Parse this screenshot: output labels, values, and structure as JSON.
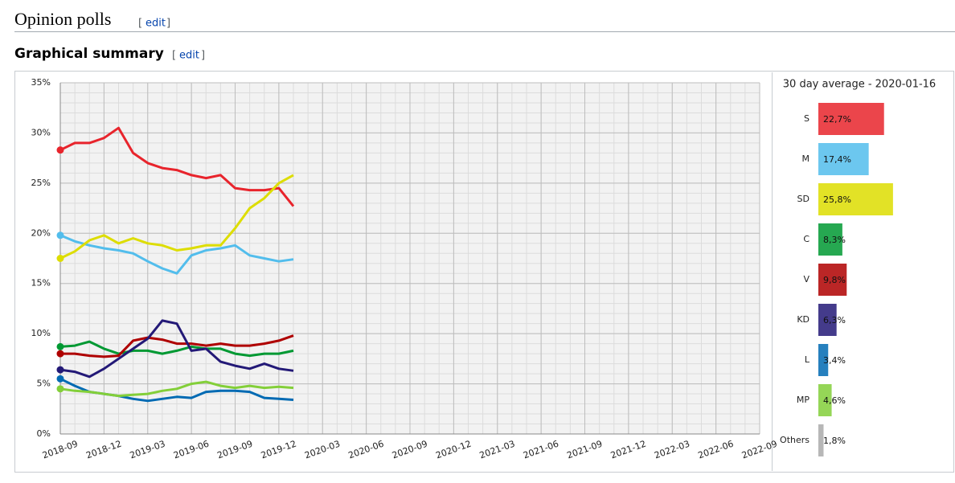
{
  "heading": {
    "title": "Opinion polls",
    "edit": {
      "open": "[",
      "link": "edit",
      "close": "]"
    }
  },
  "subheading": {
    "title": "Graphical summary",
    "edit": {
      "open": "[",
      "link": "edit",
      "close": "]"
    }
  },
  "chart_data": [
    {
      "type": "line",
      "x": [
        "2018-09",
        "2018-10",
        "2018-11",
        "2018-12",
        "2019-01",
        "2019-02",
        "2019-03",
        "2019-04",
        "2019-05",
        "2019-06",
        "2019-07",
        "2019-08",
        "2019-09",
        "2019-10",
        "2019-11",
        "2019-12",
        "2020-01"
      ],
      "series": [
        {
          "color": "#e8242c",
          "values": [
            28.3,
            29,
            29,
            29.5,
            30.5,
            28,
            27,
            26.5,
            26.3,
            25.8,
            25.5,
            25.8,
            24.5,
            24.3,
            24.3,
            24.5,
            22.7
          ]
        },
        {
          "color": "#52bdec",
          "values": [
            19.8,
            19.2,
            18.8,
            18.5,
            18.3,
            18,
            17.2,
            16.5,
            16,
            17.8,
            18.3,
            18.5,
            18.8,
            17.8,
            17.5,
            17.2,
            17.4
          ]
        },
        {
          "color": "#dddd00",
          "values": [
            17.5,
            18.2,
            19.3,
            19.8,
            19,
            19.5,
            19,
            18.8,
            18.3,
            18.5,
            18.8,
            18.8,
            20.5,
            22.5,
            23.5,
            25,
            25.8
          ]
        },
        {
          "color": "#009933",
          "values": [
            8.7,
            8.8,
            9.2,
            8.5,
            8,
            8.3,
            8.3,
            8,
            8.3,
            8.7,
            8.5,
            8.5,
            8,
            7.8,
            8,
            8,
            8.3
          ]
        },
        {
          "color": "#af0000",
          "values": [
            8,
            8,
            7.8,
            7.7,
            7.8,
            9.3,
            9.6,
            9.4,
            9,
            9,
            8.8,
            9,
            8.8,
            8.8,
            9,
            9.3,
            9.8
          ]
        },
        {
          "color": "#231977",
          "values": [
            6.4,
            6.2,
            5.7,
            6.5,
            7.5,
            8.5,
            9.5,
            11.3,
            11,
            8.3,
            8.5,
            7.2,
            6.8,
            6.5,
            7,
            6.5,
            6.3
          ]
        },
        {
          "color": "#006ab3",
          "values": [
            5.5,
            4.8,
            4.2,
            4,
            3.8,
            3.5,
            3.3,
            3.5,
            3.7,
            3.6,
            4.2,
            4.3,
            4.3,
            4.2,
            3.6,
            3.5,
            3.4
          ]
        },
        {
          "color": "#83cf39",
          "values": [
            4.5,
            4.3,
            4.2,
            4,
            3.8,
            3.9,
            4,
            4.3,
            4.5,
            5,
            5.2,
            4.8,
            4.6,
            4.8,
            4.6,
            4.7,
            4.6
          ]
        }
      ],
      "xlim": [
        "2018-09",
        "2022-09"
      ],
      "xticks": [
        "2018-09",
        "2018-12",
        "2019-03",
        "2019-06",
        "2019-09",
        "2019-12",
        "2020-03",
        "2020-06",
        "2020-09",
        "2020-12",
        "2021-03",
        "2021-06",
        "2021-09",
        "2021-12",
        "2022-03",
        "2022-06",
        "2022-09"
      ],
      "ylim": [
        0,
        35
      ],
      "yticks": [
        {
          "value": 0,
          "label": "0%"
        },
        {
          "value": 5,
          "label": "5%"
        },
        {
          "value": 10,
          "label": "10%"
        },
        {
          "value": 15,
          "label": "15%"
        },
        {
          "value": 20,
          "label": "20%"
        },
        {
          "value": 25,
          "label": "25%"
        },
        {
          "value": 30,
          "label": "30%"
        },
        {
          "value": 35,
          "label": "35%"
        }
      ],
      "grid": true
    },
    {
      "type": "bar",
      "orientation": "horizontal",
      "title": "30 day average - 2020-01-16",
      "categories": [
        "S",
        "M",
        "SD",
        "C",
        "V",
        "KD",
        "L",
        "MP",
        "Others"
      ],
      "values": [
        22.7,
        17.4,
        25.8,
        8.3,
        9.8,
        6.3,
        3.4,
        4.6,
        1.8
      ],
      "value_labels": [
        "22,7%",
        "17,4%",
        "25,8%",
        "8,3%",
        "9,8%",
        "6,3%",
        "3,4%",
        "4,6%",
        "1,8%"
      ],
      "colors": [
        "#e8242c",
        "#52bdec",
        "#dddd00",
        "#009933",
        "#af0000",
        "#231977",
        "#006ab3",
        "#83cf39",
        "#aaaaaa"
      ]
    }
  ]
}
